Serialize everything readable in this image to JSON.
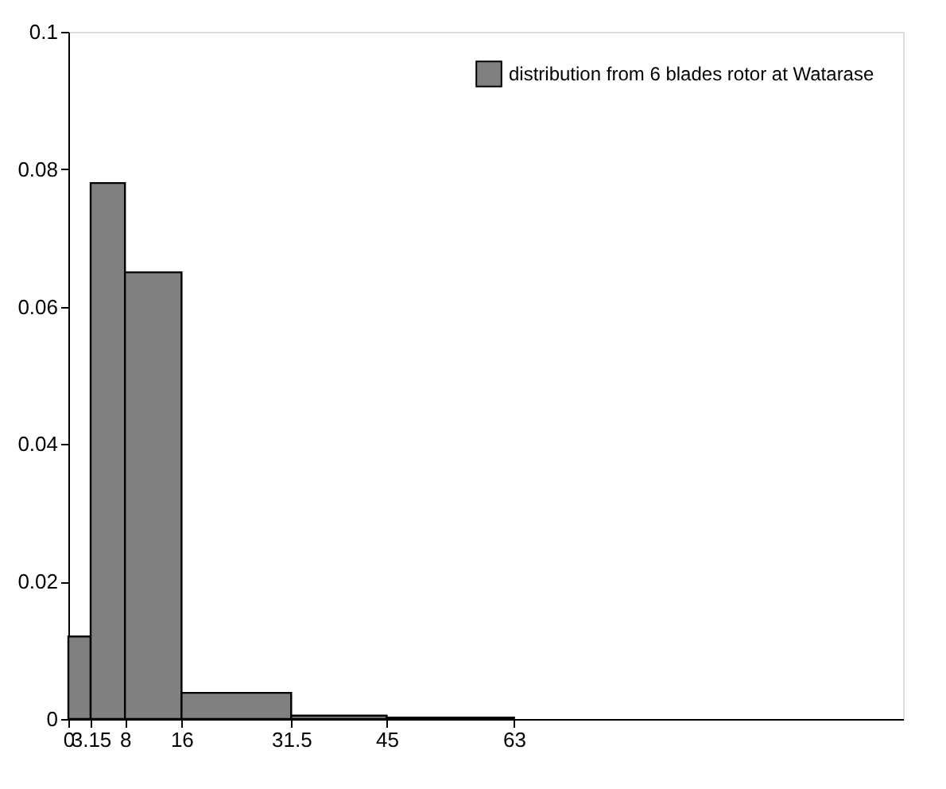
{
  "chart_data": {
    "type": "histogram",
    "bins": [
      0,
      3.15,
      8,
      16,
      31.5,
      45,
      63
    ],
    "series": [
      {
        "name": "distribution from 6 blades rotor at Watarase",
        "color": "#808080",
        "values": [
          0.012,
          0.078,
          0.065,
          0.0038,
          0.0005,
          0.0002
        ]
      }
    ],
    "xlim": [
      0,
      118
    ],
    "xticks": [
      0,
      3.15,
      8,
      16,
      31.5,
      45,
      63
    ],
    "ylim": [
      0,
      0.1
    ],
    "yticks": [
      0,
      0.02,
      0.04,
      0.06,
      0.08,
      0.1
    ],
    "grid": false,
    "legend": "top right"
  }
}
